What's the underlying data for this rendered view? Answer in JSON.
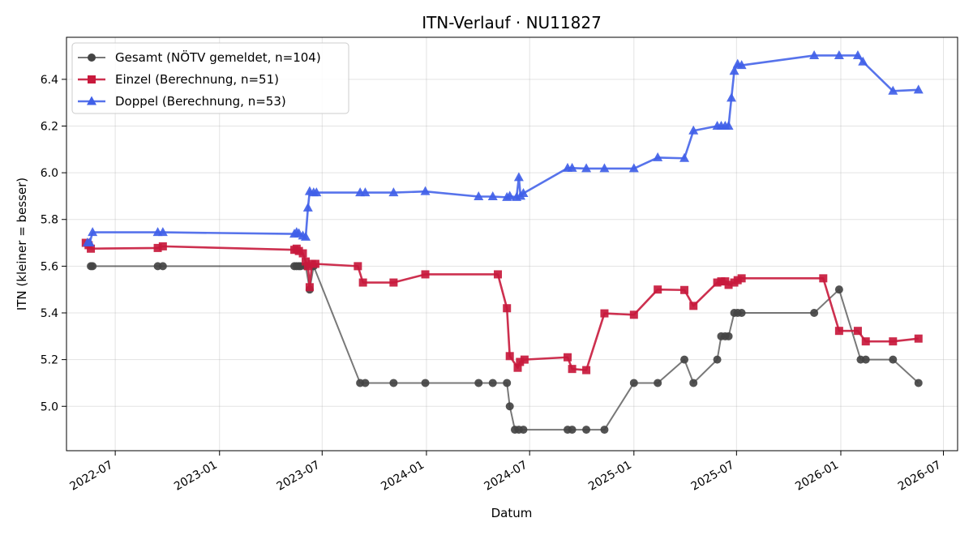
{
  "chart_data": {
    "type": "line",
    "title": "ITN-Verlauf · NU11827",
    "xlabel": "Datum",
    "ylabel": "ITN  (kleiner = besser)",
    "xlim": [
      "2022-04-06",
      "2026-07-26"
    ],
    "ylim": [
      4.81,
      6.58
    ],
    "x_ticks": [
      "2022-07-01",
      "2023-01-01",
      "2023-07-01",
      "2024-01-01",
      "2024-07-01",
      "2025-01-01",
      "2025-07-01",
      "2026-01-01",
      "2026-07-01"
    ],
    "x_tick_labels": [
      "2022-07",
      "2023-01",
      "2023-07",
      "2024-01",
      "2024-07",
      "2025-01",
      "2025-07",
      "2026-01",
      "2026-07"
    ],
    "y_ticks": [
      5.0,
      5.2,
      5.4,
      5.6,
      5.8,
      6.0,
      6.2,
      6.4
    ],
    "y_tick_labels": [
      "5.0",
      "5.2",
      "5.4",
      "5.6",
      "5.8",
      "6.0",
      "6.2",
      "6.4"
    ],
    "grid": true,
    "legend_position": "top-left",
    "series": [
      {
        "name": "Gesamt (NÖTV gemeldet, n=104)",
        "color": "#444444",
        "marker": "circle",
        "line_opacity": 0.72,
        "points": [
          [
            "2022-05-19",
            5.6
          ],
          [
            "2022-05-22",
            5.6
          ],
          [
            "2022-09-14",
            5.6
          ],
          [
            "2022-09-23",
            5.6
          ],
          [
            "2023-05-13",
            5.6
          ],
          [
            "2023-05-17",
            5.6
          ],
          [
            "2023-05-21",
            5.6
          ],
          [
            "2023-05-24",
            5.6
          ],
          [
            "2023-06-02",
            5.6
          ],
          [
            "2023-06-09",
            5.5
          ],
          [
            "2023-06-16",
            5.6
          ],
          [
            "2023-09-06",
            5.1
          ],
          [
            "2023-09-15",
            5.1
          ],
          [
            "2023-11-04",
            5.1
          ],
          [
            "2023-12-30",
            5.1
          ],
          [
            "2024-04-02",
            5.1
          ],
          [
            "2024-04-27",
            5.1
          ],
          [
            "2024-05-22",
            5.1
          ],
          [
            "2024-05-27",
            5.0
          ],
          [
            "2024-06-05",
            4.9
          ],
          [
            "2024-06-12",
            4.9
          ],
          [
            "2024-06-20",
            4.9
          ],
          [
            "2024-09-06",
            4.9
          ],
          [
            "2024-09-14",
            4.9
          ],
          [
            "2024-10-09",
            4.9
          ],
          [
            "2024-11-10",
            4.9
          ],
          [
            "2025-01-01",
            5.1
          ],
          [
            "2025-02-12",
            5.1
          ],
          [
            "2025-03-31",
            5.2
          ],
          [
            "2025-04-16",
            5.1
          ],
          [
            "2025-05-28",
            5.2
          ],
          [
            "2025-06-04",
            5.3
          ],
          [
            "2025-06-11",
            5.3
          ],
          [
            "2025-06-17",
            5.3
          ],
          [
            "2025-06-27",
            5.4
          ],
          [
            "2025-07-03",
            5.4
          ],
          [
            "2025-07-10",
            5.4
          ],
          [
            "2025-11-15",
            5.4
          ],
          [
            "2025-12-29",
            5.5
          ],
          [
            "2026-02-05",
            5.2
          ],
          [
            "2026-02-14",
            5.2
          ],
          [
            "2026-04-03",
            5.2
          ],
          [
            "2026-05-18",
            5.1
          ]
        ]
      },
      {
        "name": "Einzel (Berechnung, n=51)",
        "color": "#c8193c",
        "marker": "square",
        "line_opacity": 0.9,
        "points": [
          [
            "2022-05-10",
            5.7
          ],
          [
            "2022-05-15",
            5.69
          ],
          [
            "2022-05-19",
            5.675
          ],
          [
            "2022-09-14",
            5.678
          ],
          [
            "2022-09-23",
            5.685
          ],
          [
            "2023-05-13",
            5.67
          ],
          [
            "2023-05-17",
            5.675
          ],
          [
            "2023-05-21",
            5.665
          ],
          [
            "2023-05-28",
            5.655
          ],
          [
            "2023-06-02",
            5.62
          ],
          [
            "2023-06-06",
            5.6
          ],
          [
            "2023-06-09",
            5.51
          ],
          [
            "2023-06-13",
            5.61
          ],
          [
            "2023-06-19",
            5.61
          ],
          [
            "2023-09-02",
            5.6
          ],
          [
            "2023-09-11",
            5.53
          ],
          [
            "2023-11-04",
            5.53
          ],
          [
            "2023-12-30",
            5.565
          ],
          [
            "2024-05-06",
            5.565
          ],
          [
            "2024-05-22",
            5.42
          ],
          [
            "2024-05-27",
            5.215
          ],
          [
            "2024-06-10",
            5.165
          ],
          [
            "2024-06-14",
            5.19
          ],
          [
            "2024-06-22",
            5.2
          ],
          [
            "2024-09-06",
            5.21
          ],
          [
            "2024-09-14",
            5.16
          ],
          [
            "2024-10-09",
            5.155
          ],
          [
            "2024-11-10",
            5.398
          ],
          [
            "2025-01-01",
            5.392
          ],
          [
            "2025-02-12",
            5.5
          ],
          [
            "2025-03-31",
            5.498
          ],
          [
            "2025-04-16",
            5.43
          ],
          [
            "2025-05-28",
            5.53
          ],
          [
            "2025-06-04",
            5.535
          ],
          [
            "2025-06-11",
            5.535
          ],
          [
            "2025-06-17",
            5.52
          ],
          [
            "2025-06-27",
            5.53
          ],
          [
            "2025-07-03",
            5.54
          ],
          [
            "2025-07-10",
            5.548
          ],
          [
            "2025-12-01",
            5.548
          ],
          [
            "2025-12-29",
            5.323
          ],
          [
            "2026-01-31",
            5.323
          ],
          [
            "2026-02-14",
            5.278
          ],
          [
            "2026-04-03",
            5.278
          ],
          [
            "2026-05-18",
            5.29
          ]
        ]
      },
      {
        "name": "Doppel (Berechnung, n=53)",
        "color": "#4060e8",
        "marker": "triangle",
        "line_opacity": 0.88,
        "points": [
          [
            "2022-05-13",
            5.7
          ],
          [
            "2022-05-17",
            5.7
          ],
          [
            "2022-05-22",
            5.745
          ],
          [
            "2022-09-14",
            5.745
          ],
          [
            "2022-09-23",
            5.745
          ],
          [
            "2023-05-13",
            5.738
          ],
          [
            "2023-05-17",
            5.745
          ],
          [
            "2023-05-21",
            5.74
          ],
          [
            "2023-05-28",
            5.73
          ],
          [
            "2023-06-02",
            5.725
          ],
          [
            "2023-06-06",
            5.85
          ],
          [
            "2023-06-09",
            5.92
          ],
          [
            "2023-06-16",
            5.915
          ],
          [
            "2023-06-21",
            5.915
          ],
          [
            "2023-09-06",
            5.915
          ],
          [
            "2023-09-15",
            5.915
          ],
          [
            "2023-11-04",
            5.915
          ],
          [
            "2023-12-30",
            5.92
          ],
          [
            "2024-04-02",
            5.898
          ],
          [
            "2024-04-27",
            5.898
          ],
          [
            "2024-05-22",
            5.895
          ],
          [
            "2024-05-27",
            5.9
          ],
          [
            "2024-06-08",
            5.895
          ],
          [
            "2024-06-12",
            5.98
          ],
          [
            "2024-06-15",
            5.9
          ],
          [
            "2024-06-20",
            5.912
          ],
          [
            "2024-09-06",
            6.02
          ],
          [
            "2024-09-14",
            6.02
          ],
          [
            "2024-10-09",
            6.018
          ],
          [
            "2024-11-10",
            6.018
          ],
          [
            "2025-01-01",
            6.018
          ],
          [
            "2025-02-12",
            6.065
          ],
          [
            "2025-03-31",
            6.062
          ],
          [
            "2025-04-16",
            6.18
          ],
          [
            "2025-05-28",
            6.2
          ],
          [
            "2025-06-04",
            6.2
          ],
          [
            "2025-06-11",
            6.2
          ],
          [
            "2025-06-17",
            6.2
          ],
          [
            "2025-06-22",
            6.32
          ],
          [
            "2025-06-27",
            6.435
          ],
          [
            "2025-07-03",
            6.465
          ],
          [
            "2025-07-10",
            6.46
          ],
          [
            "2025-11-15",
            6.502
          ],
          [
            "2025-12-29",
            6.502
          ],
          [
            "2026-01-31",
            6.502
          ],
          [
            "2026-02-09",
            6.475
          ],
          [
            "2026-04-03",
            6.35
          ],
          [
            "2026-05-18",
            6.355
          ]
        ]
      }
    ]
  }
}
